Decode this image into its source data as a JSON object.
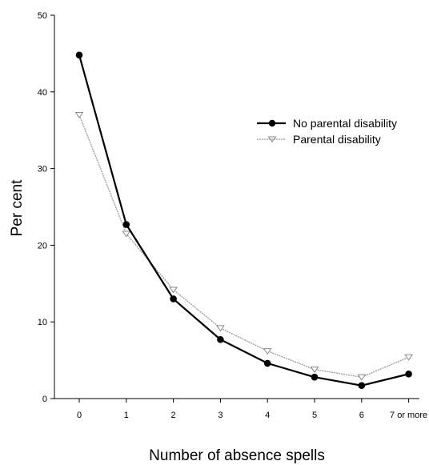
{
  "chart_data": {
    "type": "line",
    "title": "",
    "xlabel": "Number of absence spells",
    "ylabel": "Per cent",
    "categories": [
      "0",
      "1",
      "2",
      "3",
      "4",
      "5",
      "6",
      "7 or more"
    ],
    "yticks": [
      "0",
      "10",
      "20",
      "30",
      "40",
      "50"
    ],
    "ylim": [
      0,
      50
    ],
    "grid": false,
    "legend_position": "upper-right",
    "series": [
      {
        "name": "No parental disability",
        "values": [
          44.8,
          22.7,
          13.0,
          7.7,
          4.6,
          2.8,
          1.7,
          3.2
        ],
        "color": "#000000",
        "marker": "filled-circle"
      },
      {
        "name": "Parental disability",
        "values": [
          37.0,
          21.5,
          14.2,
          9.2,
          6.2,
          3.8,
          2.8,
          5.4
        ],
        "color": "#999999",
        "marker": "triangle-down"
      }
    ]
  }
}
